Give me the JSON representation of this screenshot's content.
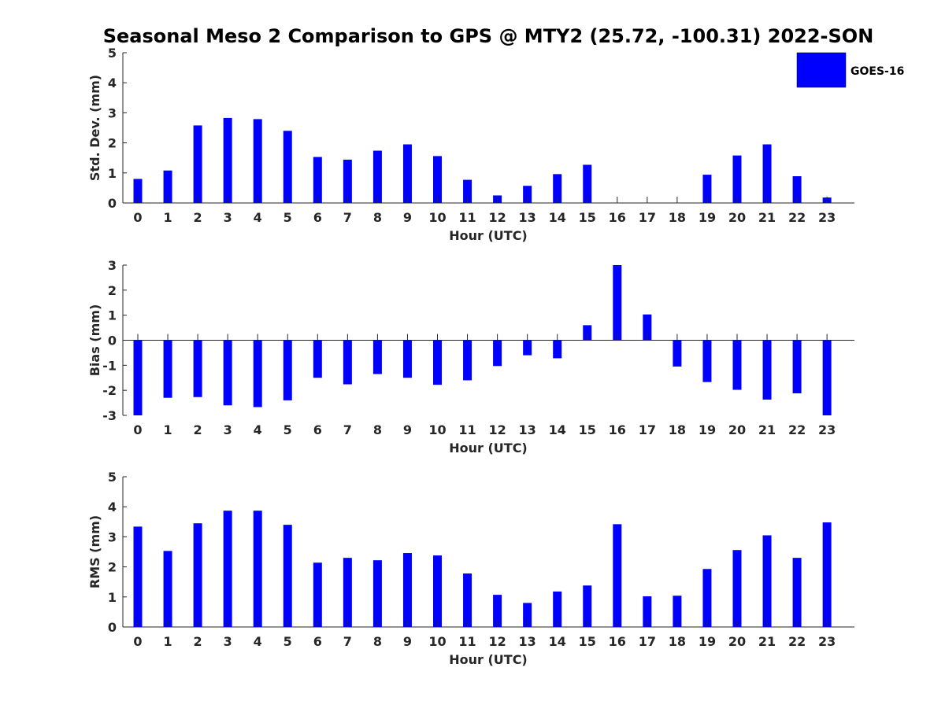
{
  "title": "Seasonal Meso 2 Comparison to GPS @ MTY2 (25.72, -100.31) 2022-SON",
  "legend": {
    "label": "GOES-16",
    "color": "#0000ff",
    "placement": "top-right"
  },
  "chart_data": [
    {
      "type": "bar",
      "ylabel": "Std. Dev. (mm)",
      "xlabel": "Hour (UTC)",
      "ylim": [
        0,
        5
      ],
      "yticks": [
        0,
        1,
        2,
        3,
        4,
        5
      ],
      "categories": [
        "0",
        "1",
        "2",
        "3",
        "4",
        "5",
        "6",
        "7",
        "8",
        "9",
        "10",
        "11",
        "12",
        "13",
        "14",
        "15",
        "16",
        "17",
        "18",
        "19",
        "20",
        "21",
        "22",
        "23"
      ],
      "series": [
        {
          "name": "GOES-16",
          "values": [
            0.8,
            1.08,
            2.58,
            2.83,
            2.79,
            2.4,
            1.53,
            1.44,
            1.74,
            1.95,
            1.56,
            0.77,
            0.25,
            0.57,
            0.96,
            1.27,
            0,
            0,
            0,
            0.94,
            1.58,
            1.95,
            0.89,
            0.18
          ]
        }
      ]
    },
    {
      "type": "bar",
      "ylabel": "Bias (mm)",
      "xlabel": "Hour (UTC)",
      "ylim": [
        -3,
        3
      ],
      "yticks": [
        -3,
        -2,
        -1,
        0,
        1,
        2,
        3
      ],
      "categories": [
        "0",
        "1",
        "2",
        "3",
        "4",
        "5",
        "6",
        "7",
        "8",
        "9",
        "10",
        "11",
        "12",
        "13",
        "14",
        "15",
        "16",
        "17",
        "18",
        "19",
        "20",
        "21",
        "22",
        "23"
      ],
      "series": [
        {
          "name": "GOES-16",
          "values": [
            -3.0,
            -2.3,
            -2.27,
            -2.6,
            -2.67,
            -2.4,
            -1.5,
            -1.76,
            -1.35,
            -1.5,
            -1.78,
            -1.6,
            -1.03,
            -0.6,
            -0.72,
            0.6,
            3.0,
            1.03,
            -1.05,
            -1.67,
            -1.98,
            -2.37,
            -2.12,
            -3.0
          ]
        }
      ]
    },
    {
      "type": "bar",
      "ylabel": "RMS (mm)",
      "xlabel": "Hour (UTC)",
      "ylim": [
        0,
        5
      ],
      "yticks": [
        0,
        1,
        2,
        3,
        4,
        5
      ],
      "categories": [
        "0",
        "1",
        "2",
        "3",
        "4",
        "5",
        "6",
        "7",
        "8",
        "9",
        "10",
        "11",
        "12",
        "13",
        "14",
        "15",
        "16",
        "17",
        "18",
        "19",
        "20",
        "21",
        "22",
        "23"
      ],
      "series": [
        {
          "name": "GOES-16",
          "values": [
            3.34,
            2.53,
            3.45,
            3.87,
            3.87,
            3.4,
            2.14,
            2.3,
            2.22,
            2.46,
            2.38,
            1.78,
            1.07,
            0.8,
            1.18,
            1.38,
            3.42,
            1.02,
            1.04,
            1.93,
            2.56,
            3.05,
            2.3,
            3.48
          ]
        }
      ]
    }
  ]
}
